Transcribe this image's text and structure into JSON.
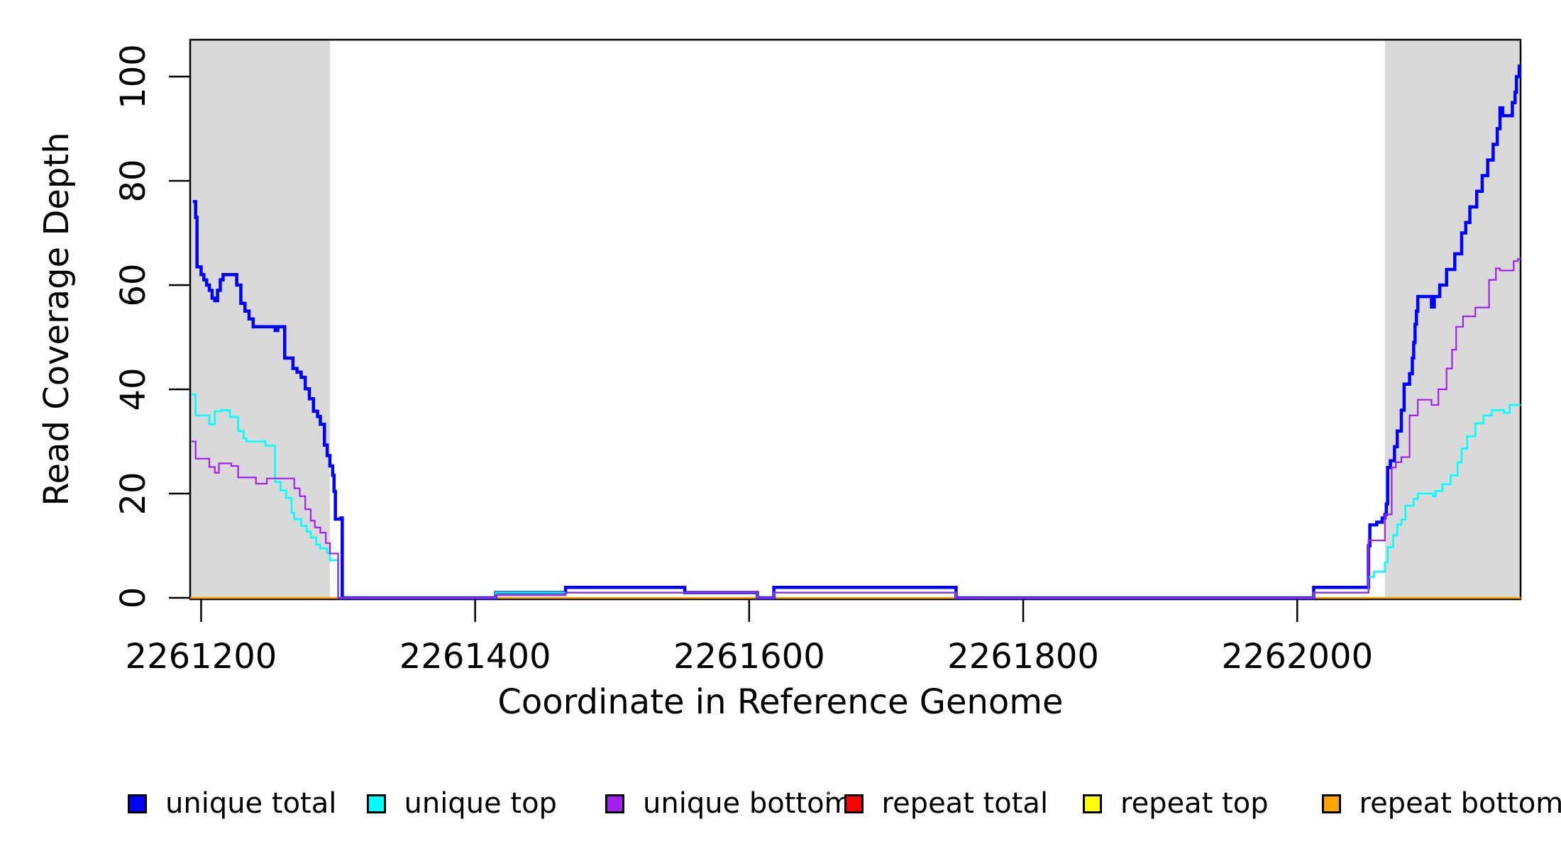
{
  "axes": {
    "x_title": "Coordinate in Reference Genome",
    "y_title": "Read Coverage Depth",
    "x_ticks": [
      2261200,
      2261400,
      2261600,
      2261800,
      2262000
    ],
    "y_ticks": [
      0,
      20,
      40,
      60,
      80,
      100
    ],
    "x_range": [
      2261192,
      2262163
    ],
    "y_range": [
      0,
      107
    ]
  },
  "legend": {
    "separator_dot": "·",
    "items": [
      {
        "label": "unique total",
        "color": "#0000FF"
      },
      {
        "label": "unique top",
        "color": "#00FFFF"
      },
      {
        "label": "unique bottom",
        "color": "#A020F0"
      },
      {
        "label": "repeat total",
        "color": "#FF0000"
      },
      {
        "label": "repeat top",
        "color": "#FFFF00"
      },
      {
        "label": "repeat bottom",
        "color": "#FFA500"
      }
    ]
  },
  "chart_data": {
    "type": "line",
    "step": true,
    "title": "",
    "xlabel": "Coordinate in Reference Genome",
    "ylabel": "Read Coverage Depth",
    "xlim": [
      2261192,
      2262163
    ],
    "ylim": [
      0,
      107
    ],
    "grid": false,
    "legend_position": "bottom",
    "shaded_regions": [
      {
        "x0": 2261192,
        "x1": 2261294,
        "color": "#D9D9D9"
      },
      {
        "x0": 2262064,
        "x1": 2262163,
        "color": "#D9D9D9"
      }
    ],
    "series": [
      {
        "name": "repeat total",
        "color": "#FF0000",
        "width": 2,
        "points": [
          [
            2261192,
            0
          ],
          [
            2262163,
            0
          ]
        ]
      },
      {
        "name": "repeat top",
        "color": "#FFFF00",
        "width": 2,
        "points": [
          [
            2261192,
            0
          ],
          [
            2262163,
            0
          ]
        ]
      },
      {
        "name": "repeat bottom",
        "color": "#FFA500",
        "width": 2.6,
        "points": [
          [
            2261192,
            0
          ],
          [
            2262163,
            0
          ]
        ]
      },
      {
        "name": "unique total",
        "color": "#0000FF",
        "width": 4.5,
        "points": [
          [
            2261194,
            76
          ],
          [
            2261196,
            73
          ],
          [
            2261197,
            63.5
          ],
          [
            2261200,
            62
          ],
          [
            2261202,
            61
          ],
          [
            2261204,
            60
          ],
          [
            2261206,
            59
          ],
          [
            2261208,
            57.5
          ],
          [
            2261210,
            57
          ],
          [
            2261212,
            59
          ],
          [
            2261214,
            61
          ],
          [
            2261216,
            62
          ],
          [
            2261222,
            62
          ],
          [
            2261226,
            60
          ],
          [
            2261229,
            56.5
          ],
          [
            2261232,
            55
          ],
          [
            2261235,
            53.5
          ],
          [
            2261238,
            52
          ],
          [
            2261254,
            51.3
          ],
          [
            2261256,
            52
          ],
          [
            2261261,
            46
          ],
          [
            2261267,
            44
          ],
          [
            2261270,
            43.3
          ],
          [
            2261273,
            42.3
          ],
          [
            2261276,
            40.1
          ],
          [
            2261279,
            38.2
          ],
          [
            2261282,
            35.8
          ],
          [
            2261285,
            34.8
          ],
          [
            2261287,
            33.3
          ],
          [
            2261290,
            29.3
          ],
          [
            2261292,
            27.3
          ],
          [
            2261294,
            25.3
          ],
          [
            2261296,
            23.5
          ],
          [
            2261297,
            20.4
          ],
          [
            2261298,
            15.1
          ],
          [
            2261302,
            15.3
          ],
          [
            2261303,
            0
          ],
          [
            2261415,
            1
          ],
          [
            2261466,
            2
          ],
          [
            2261553,
            1
          ],
          [
            2261606,
            0
          ],
          [
            2261618,
            2
          ],
          [
            2261751,
            0
          ],
          [
            2262012,
            2
          ],
          [
            2262052,
            10
          ],
          [
            2262053,
            14
          ],
          [
            2262058,
            14.5
          ],
          [
            2262062,
            15.3
          ],
          [
            2262064,
            16
          ],
          [
            2262065,
            18
          ],
          [
            2262066,
            25
          ],
          [
            2262068,
            26.3
          ],
          [
            2262071,
            29
          ],
          [
            2262073,
            32
          ],
          [
            2262076,
            36
          ],
          [
            2262078,
            41
          ],
          [
            2262082,
            43
          ],
          [
            2262084,
            46
          ],
          [
            2262085,
            49
          ],
          [
            2262086,
            52.5
          ],
          [
            2262087,
            55
          ],
          [
            2262088,
            57.8
          ],
          [
            2262098,
            55.8
          ],
          [
            2262100,
            57.8
          ],
          [
            2262104,
            60
          ],
          [
            2262109,
            63
          ],
          [
            2262115,
            66
          ],
          [
            2262120,
            70
          ],
          [
            2262123,
            72
          ],
          [
            2262126,
            75
          ],
          [
            2262131,
            78
          ],
          [
            2262135,
            81
          ],
          [
            2262139,
            84
          ],
          [
            2262143,
            87
          ],
          [
            2262146,
            90
          ],
          [
            2262148,
            94
          ],
          [
            2262150,
            92.5
          ],
          [
            2262157,
            95
          ],
          [
            2262159,
            97
          ],
          [
            2262160,
            100
          ],
          [
            2262162,
            102
          ],
          [
            2262163,
            102
          ]
        ]
      },
      {
        "name": "unique top",
        "color": "#00FFFF",
        "width": 2.6,
        "points": [
          [
            2261193,
            39
          ],
          [
            2261196,
            35
          ],
          [
            2261206,
            33.3
          ],
          [
            2261210,
            35.8
          ],
          [
            2261215,
            36
          ],
          [
            2261221,
            34.7
          ],
          [
            2261227,
            32
          ],
          [
            2261231,
            30.6
          ],
          [
            2261233,
            30
          ],
          [
            2261247,
            29.2
          ],
          [
            2261254,
            22.2
          ],
          [
            2261258,
            20.6
          ],
          [
            2261262,
            19.2
          ],
          [
            2261266,
            16.3
          ],
          [
            2261268,
            15.1
          ],
          [
            2261273,
            13.8
          ],
          [
            2261277,
            12.7
          ],
          [
            2261280,
            11.6
          ],
          [
            2261284,
            10.2
          ],
          [
            2261287,
            9.5
          ],
          [
            2261292,
            8.6
          ],
          [
            2261294,
            7.2
          ],
          [
            2261300,
            0
          ],
          [
            2261415,
            1
          ],
          [
            2261606,
            0
          ],
          [
            2261618,
            1
          ],
          [
            2261751,
            0
          ],
          [
            2262012,
            1
          ],
          [
            2262052,
            4
          ],
          [
            2262056,
            5
          ],
          [
            2262064,
            6.8
          ],
          [
            2262066,
            9.7
          ],
          [
            2262070,
            12
          ],
          [
            2262073,
            14
          ],
          [
            2262076,
            15
          ],
          [
            2262079,
            17.7
          ],
          [
            2262085,
            19
          ],
          [
            2262088,
            20
          ],
          [
            2262099,
            19.5
          ],
          [
            2262101,
            20.5
          ],
          [
            2262106,
            21.8
          ],
          [
            2262112,
            23.5
          ],
          [
            2262117,
            26
          ],
          [
            2262120,
            28.6
          ],
          [
            2262124,
            31
          ],
          [
            2262130,
            33.5
          ],
          [
            2262136,
            35
          ],
          [
            2262142,
            36
          ],
          [
            2262150,
            36
          ],
          [
            2262151,
            35.5
          ],
          [
            2262155,
            37
          ],
          [
            2262163,
            37
          ]
        ]
      },
      {
        "name": "unique bottom",
        "color": "#A020F0",
        "width": 2.2,
        "points": [
          [
            2261193,
            30
          ],
          [
            2261196,
            26.7
          ],
          [
            2261206,
            25.1
          ],
          [
            2261210,
            24
          ],
          [
            2261213,
            25.8
          ],
          [
            2261222,
            25.3
          ],
          [
            2261227,
            23.1
          ],
          [
            2261240,
            21.9
          ],
          [
            2261248,
            22.9
          ],
          [
            2261268,
            21
          ],
          [
            2261272,
            19.5
          ],
          [
            2261276,
            17
          ],
          [
            2261280,
            14.8
          ],
          [
            2261283,
            13.5
          ],
          [
            2261287,
            12.5
          ],
          [
            2261291,
            10.5
          ],
          [
            2261294,
            8.5
          ],
          [
            2261300,
            0
          ],
          [
            2261415,
            0.5
          ],
          [
            2261466,
            1
          ],
          [
            2261606,
            0
          ],
          [
            2261618,
            1
          ],
          [
            2261751,
            0
          ],
          [
            2262012,
            1
          ],
          [
            2262052,
            11
          ],
          [
            2262064,
            16
          ],
          [
            2262069,
            25
          ],
          [
            2262072,
            26
          ],
          [
            2262076,
            27
          ],
          [
            2262082,
            35
          ],
          [
            2262088,
            38
          ],
          [
            2262098,
            37
          ],
          [
            2262103,
            40
          ],
          [
            2262109,
            44
          ],
          [
            2262113,
            47.6
          ],
          [
            2262116,
            52
          ],
          [
            2262121,
            54
          ],
          [
            2262130,
            55.7
          ],
          [
            2262140,
            61
          ],
          [
            2262145,
            63.2
          ],
          [
            2262148,
            62.8
          ],
          [
            2262158,
            64.6
          ],
          [
            2262161,
            65
          ],
          [
            2262163,
            65
          ]
        ]
      }
    ]
  }
}
